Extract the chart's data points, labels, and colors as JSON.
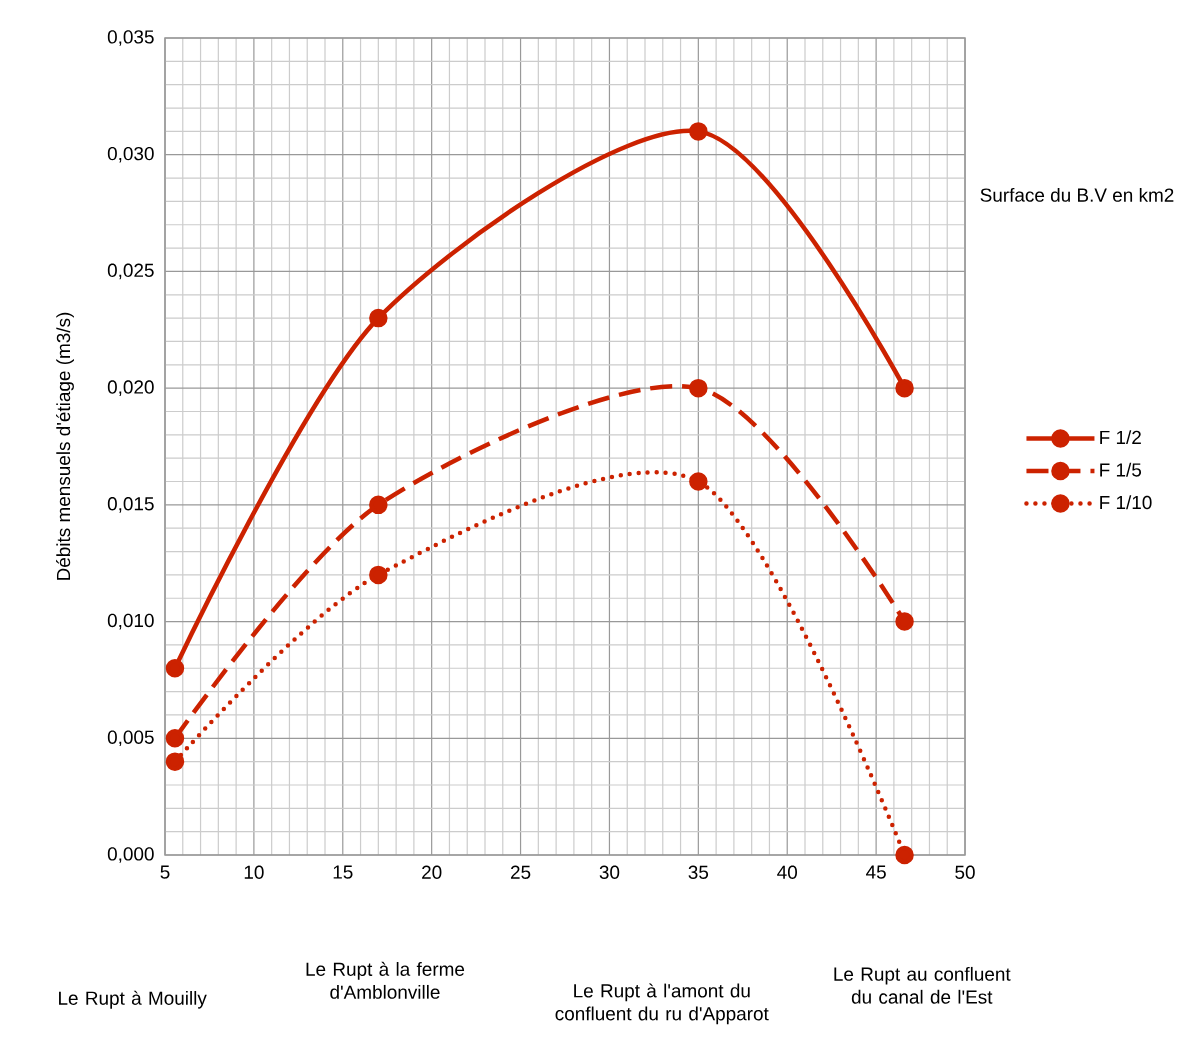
{
  "chart_data": {
    "type": "line",
    "xlabel": "Surface du B.V en km2",
    "ylabel": "Débits mensuels d'étiage (m3/s)",
    "x": [
      5.56,
      17.0,
      35.0,
      46.6
    ],
    "series": [
      {
        "name": "F 1/2",
        "color": "#cc2200",
        "line_style": "solid",
        "values": [
          0.008,
          0.023,
          0.031,
          0.02
        ]
      },
      {
        "name": "F 1/5",
        "color": "#cc2200",
        "line_style": "dashed",
        "values": [
          0.005,
          0.015,
          0.02,
          0.01
        ]
      },
      {
        "name": "F 1/10",
        "color": "#cc2200",
        "line_style": "dotted",
        "values": [
          0.004,
          0.012,
          0.016,
          0.0
        ]
      }
    ],
    "xlim": [
      5,
      50
    ],
    "xticks": [
      5,
      10,
      15,
      20,
      25,
      30,
      35,
      40,
      45,
      50
    ],
    "ylim": [
      0,
      0.035
    ],
    "yticks": [
      {
        "value": 0,
        "label": "0,000"
      },
      {
        "value": 0.005,
        "label": "0,005"
      },
      {
        "value": 0.01,
        "label": "0,010"
      },
      {
        "value": 0.015,
        "label": "0,015"
      },
      {
        "value": 0.02,
        "label": "0,020"
      },
      {
        "value": 0.025,
        "label": "0,025"
      },
      {
        "value": 0.03,
        "label": "0,030"
      },
      {
        "value": 0.035,
        "label": "0,035"
      }
    ],
    "annotations": [
      "Le Rupt à Mouilly",
      "Le Rupt à la ferme d'Amblonville",
      "Le Rupt à l'amont du confluent du ru d'Apparot",
      "Le Rupt au confluent du canal de l'Est"
    ],
    "grid": true,
    "legend": "right",
    "marker": "circle"
  }
}
